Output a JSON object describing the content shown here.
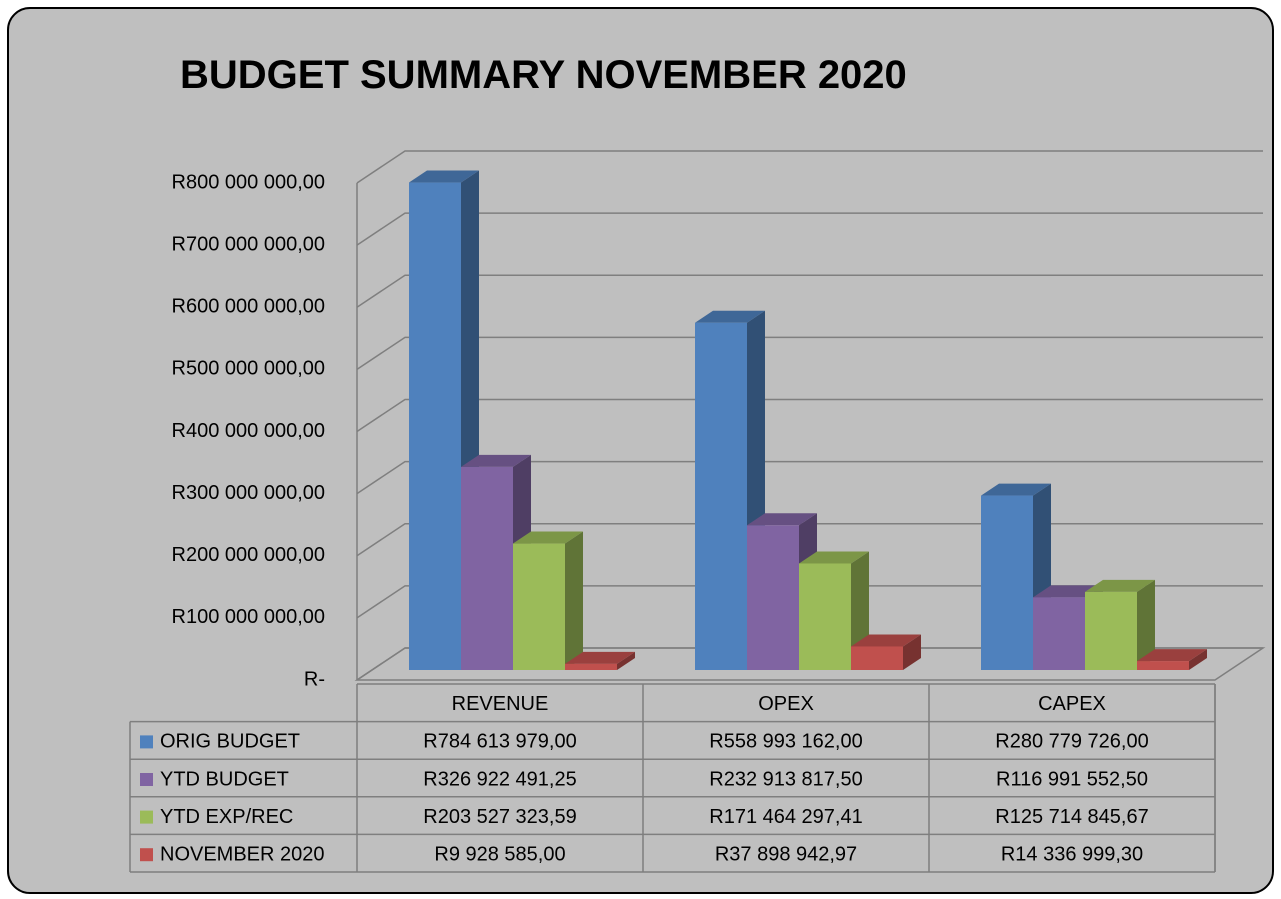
{
  "chart_data": {
    "type": "bar3d",
    "title": "BUDGET SUMMARY NOVEMBER 2020",
    "categories": [
      "REVENUE",
      "OPEX",
      "CAPEX"
    ],
    "series": [
      {
        "name": "ORIG BUDGET",
        "color": "#4f81bd",
        "values": [
          784613979.0,
          558993162.0,
          280779726.0
        ],
        "value_labels": [
          "R784 613 979,00",
          "R558 993 162,00",
          "R280 779 726,00"
        ]
      },
      {
        "name": "YTD BUDGET",
        "color": "#8064a2",
        "values": [
          326922491.25,
          232913817.5,
          116991552.5
        ],
        "value_labels": [
          "R326 922 491,25",
          "R232 913 817,50",
          "R116 991 552,50"
        ]
      },
      {
        "name": "YTD EXP/REC",
        "color": "#9bbb59",
        "values": [
          203527323.59,
          171464297.41,
          125714845.67
        ],
        "value_labels": [
          "R203 527 323,59",
          "R171 464 297,41",
          "R125 714 845,67"
        ]
      },
      {
        "name": "NOVEMBER 2020",
        "color": "#c0504d",
        "values": [
          9928585.0,
          37898942.97,
          14336999.3
        ],
        "value_labels": [
          "R9 928 585,00",
          "R37 898 942,97",
          "R14 336 999,30"
        ]
      }
    ],
    "ylim": [
      0,
      800000000
    ],
    "yticks": [
      {
        "value": 0,
        "label": "R-"
      },
      {
        "value": 100000000,
        "label": "R100 000 000,00"
      },
      {
        "value": 200000000,
        "label": "R200 000 000,00"
      },
      {
        "value": 300000000,
        "label": "R300 000 000,00"
      },
      {
        "value": 400000000,
        "label": "R400 000 000,00"
      },
      {
        "value": 500000000,
        "label": "R500 000 000,00"
      },
      {
        "value": 600000000,
        "label": "R600 000 000,00"
      },
      {
        "value": 700000000,
        "label": "R700 000 000,00"
      },
      {
        "value": 800000000,
        "label": "R800 000 000,00"
      }
    ],
    "grid": true,
    "legend": "table"
  }
}
